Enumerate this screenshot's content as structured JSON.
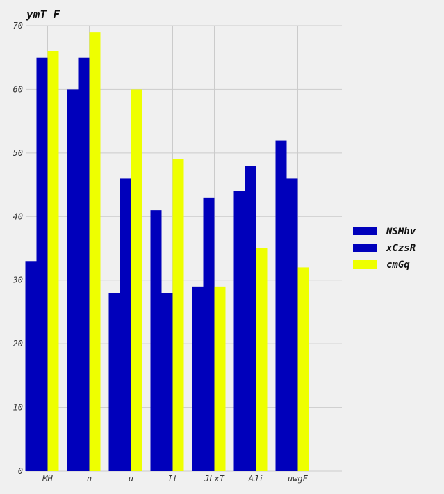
{
  "chart_data": {
    "type": "bar",
    "title": "ymT F",
    "xlabel": "",
    "ylabel": "",
    "categories": [
      "MH",
      "n",
      "u",
      "It",
      "JLxT",
      "AJi",
      "uwgE"
    ],
    "series": [
      {
        "name": "NSMhv",
        "color": "#0000bb",
        "values": [
          33,
          60,
          28,
          41,
          29,
          44,
          52
        ]
      },
      {
        "name": "xCzsR",
        "color": "#0000bb",
        "values": [
          65,
          65,
          46,
          28,
          43,
          48,
          46
        ]
      },
      {
        "name": "cmGq",
        "color": "#eeff00",
        "values": [
          66,
          69,
          60,
          49,
          29,
          35,
          32
        ]
      }
    ],
    "ylim": [
      0,
      70
    ],
    "yticks": [
      0,
      10,
      20,
      30,
      40,
      50,
      60,
      70
    ],
    "grid": true,
    "legend_position": "right"
  }
}
